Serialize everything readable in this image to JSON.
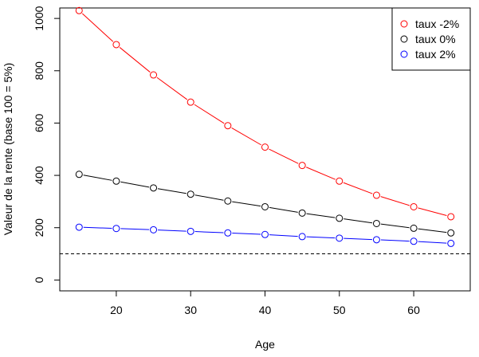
{
  "chart_data": {
    "type": "line",
    "xlabel": "Age",
    "ylabel": "Valeur de la rente (base 100 = 5%)",
    "xlim": [
      12.4,
      67.6
    ],
    "ylim": [
      -41.5,
      1040
    ],
    "xticks": [
      20,
      30,
      40,
      50,
      60
    ],
    "yticks": [
      0,
      200,
      400,
      600,
      800,
      1000
    ],
    "reference_line": {
      "y": 100,
      "style": "dashed"
    },
    "legend_position": "top-right",
    "x": [
      15,
      20,
      25,
      30,
      35,
      40,
      45,
      50,
      55,
      60,
      65
    ],
    "series": [
      {
        "name": "taux -2%",
        "color": "#ff0000",
        "marker": "open-circle",
        "values": [
          1030,
          900,
          784,
          680,
          590,
          508,
          438,
          378,
          324,
          280,
          242
        ]
      },
      {
        "name": "taux 0%",
        "color": "#000000",
        "marker": "open-circle",
        "values": [
          404,
          378,
          352,
          328,
          302,
          280,
          256,
          236,
          216,
          198,
          180
        ]
      },
      {
        "name": "taux 2%",
        "color": "#0000ff",
        "marker": "open-circle",
        "values": [
          202,
          197,
          192,
          186,
          180,
          174,
          166,
          160,
          154,
          148,
          140
        ]
      }
    ]
  }
}
